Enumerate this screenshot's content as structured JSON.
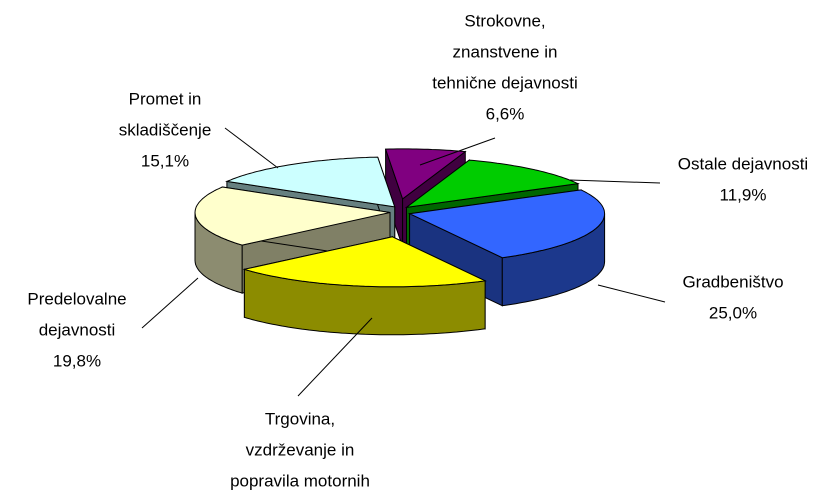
{
  "chart_data": {
    "type": "pie3d",
    "categories": [
      [
        "Strokovne,",
        "znanstvene in",
        "tehnične dejavnosti"
      ],
      [
        "Ostale dejavnosti"
      ],
      [
        "Gradbeništvo"
      ],
      [
        "Trgovina,",
        "vzdrževanje in",
        "popravila motornih"
      ],
      [
        "Predelovalne",
        "dejavnosti"
      ],
      [
        "Promet in",
        "skladiščenje"
      ]
    ],
    "values": [
      6.6,
      11.9,
      25.0,
      21.6,
      19.8,
      15.1
    ],
    "value_labels": [
      "6,6%",
      "11,9%",
      "25,0%",
      null,
      "19,8%",
      "15,1%"
    ],
    "colors": [
      "#800080",
      "#00cc00",
      "#3366ff",
      "#ffff00",
      "#ffffcc",
      "#ccffff"
    ]
  }
}
